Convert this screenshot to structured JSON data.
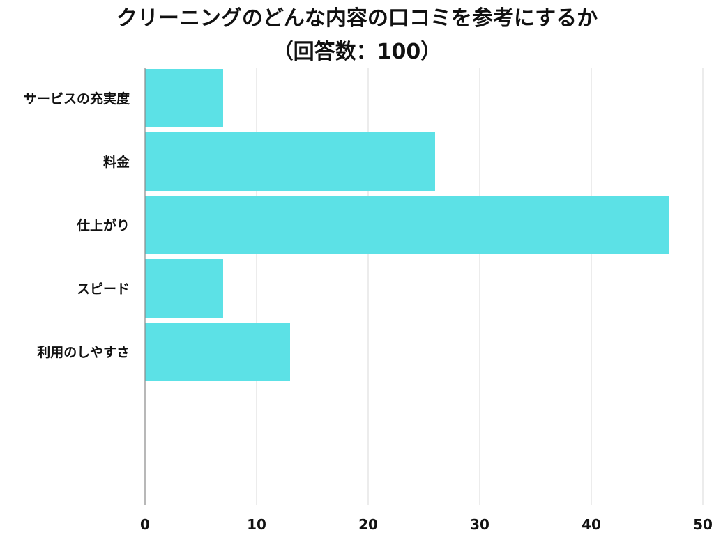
{
  "title_line1": "クリーニングのどんな内容の口コミを参考にするか",
  "title_line2": "（回答数：100）",
  "colors": {
    "bar": "#5ce1e6",
    "grid": "#d9d9d9",
    "axis": "#888888"
  },
  "chart_data": {
    "type": "bar",
    "orientation": "horizontal",
    "categories": [
      "サービスの充実度",
      "料金",
      "仕上がり",
      "スピード",
      "利用のしやすさ"
    ],
    "values": [
      7,
      26,
      47,
      7,
      13
    ],
    "xlim": [
      0,
      50
    ],
    "xticks": [
      0,
      10,
      20,
      30,
      40,
      50
    ],
    "grid": true
  }
}
